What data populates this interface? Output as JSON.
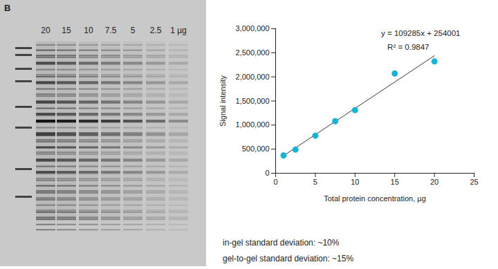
{
  "panel_label": "B",
  "gel": {
    "lane_labels": [
      "20",
      "15",
      "10",
      "7.5",
      "5",
      "2.5",
      "1 µg"
    ]
  },
  "chart_data": {
    "type": "scatter",
    "x": [
      1,
      2.5,
      5,
      7.5,
      10,
      15,
      20
    ],
    "values": [
      370000,
      490000,
      780000,
      1080000,
      1310000,
      2070000,
      2320000
    ],
    "color": "#1bb3d4",
    "marker": "circle",
    "xlabel": "Total protein concentration, µg",
    "ylabel": "Signal intensity",
    "xlim": [
      0,
      25
    ],
    "xticks": [
      0,
      5,
      10,
      15,
      20,
      25
    ],
    "ylim": [
      0,
      3000000
    ],
    "yticks": [
      0,
      {
        "value": 500000,
        "label": "500,000"
      },
      {
        "value": 1000000,
        "label": "1,000,000"
      },
      {
        "value": 1500000,
        "label": "1,500,000"
      },
      {
        "value": 2000000,
        "label": "2,000,000"
      },
      {
        "value": 2500000,
        "label": "2,500,000"
      },
      {
        "value": 3000000,
        "label": "3,000,000"
      }
    ],
    "grid": false,
    "fit": {
      "slope": 109285,
      "intercept": 254001,
      "x": [
        1,
        20
      ],
      "color": "#333333"
    },
    "annotations": [
      "y = 109285x + 254001",
      "R² = 0.9847"
    ]
  },
  "notes": [
    "in-gel standard deviation: ~10%",
    "gel-to-gel standard deviation: ~15%"
  ]
}
